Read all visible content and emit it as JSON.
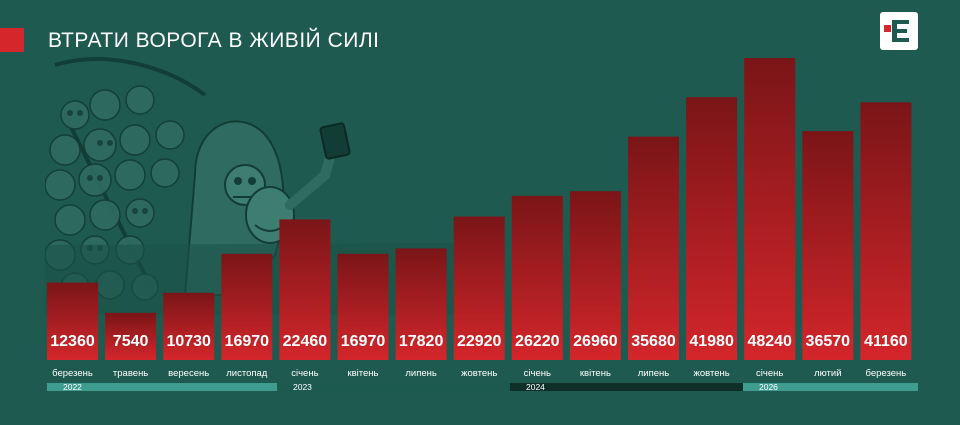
{
  "header": {
    "title": "ВТРАТИ ВОРОГА В ЖИВІЙ СИЛІ",
    "logo_text": "Є"
  },
  "colors": {
    "background": "#1e5a4f",
    "bar_top": "#7a1517",
    "bar_bottom": "#d3262b",
    "accent": "#d5262b",
    "year_band_light": "#3f9d8f",
    "year_band_dark": "#123d35"
  },
  "chart_data": {
    "type": "bar",
    "title": "ВТРАТИ ВОРОГА В ЖИВІЙ СИЛІ",
    "categories": [
      "березень",
      "травень",
      "вересень",
      "листопад",
      "січень",
      "квітень",
      "липень",
      "жовтень",
      "січень",
      "квітень",
      "липень",
      "жовтень",
      "січень",
      "лютий",
      "березень"
    ],
    "values": [
      12360,
      7540,
      10730,
      16970,
      22460,
      16970,
      17820,
      22920,
      26220,
      26960,
      35680,
      41980,
      48240,
      36570,
      41160
    ],
    "years": [
      {
        "label": "2022",
        "start": 0,
        "end": 4
      },
      {
        "label": "2023",
        "start": 4,
        "end": 8
      },
      {
        "label": "2024",
        "start": 8,
        "end": 12
      },
      {
        "label": "2026",
        "start": 12,
        "end": 15
      }
    ],
    "ylim": [
      0,
      50000
    ],
    "grid": false,
    "legend": "none",
    "data_labels": true
  }
}
